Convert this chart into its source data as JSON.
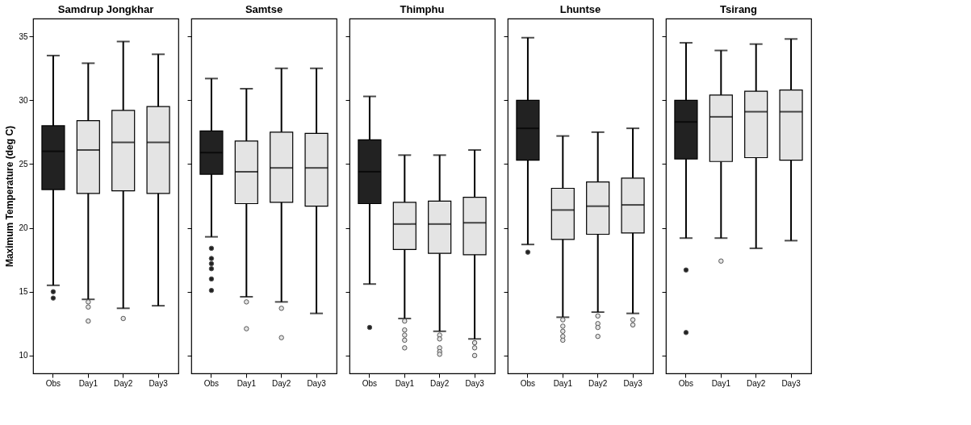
{
  "chart_data": [
    {
      "type": "box",
      "title": "Samdrup Jongkhar",
      "ylabel": "Maximum Temperature (deg C)",
      "categories": [
        "Obs",
        "Day1",
        "Day2",
        "Day3"
      ],
      "colors": [
        "#222222",
        "#e4e4e4",
        "#e4e4e4",
        "#e4e4e4"
      ],
      "ylim": [
        8.6,
        36.4
      ],
      "yticks": [
        10,
        15,
        20,
        25,
        30,
        35
      ],
      "grid": false,
      "boxes": [
        {
          "low": 15.5,
          "q1": 23.0,
          "median": 26.0,
          "q3": 28.0,
          "high": 33.5,
          "outliers": [
            15.0,
            14.5
          ]
        },
        {
          "low": 14.4,
          "q1": 22.7,
          "median": 26.1,
          "q3": 28.4,
          "high": 32.9,
          "outliers": [
            14.2,
            13.8,
            12.7
          ]
        },
        {
          "low": 13.7,
          "q1": 22.9,
          "median": 26.7,
          "q3": 29.2,
          "high": 34.6,
          "outliers": [
            12.9
          ]
        },
        {
          "low": 13.9,
          "q1": 22.7,
          "median": 26.7,
          "q3": 29.5,
          "high": 33.6
        }
      ]
    },
    {
      "type": "box",
      "title": "Samtse",
      "categories": [
        "Obs",
        "Day1",
        "Day2",
        "Day3"
      ],
      "colors": [
        "#222222",
        "#e4e4e4",
        "#e4e4e4",
        "#e4e4e4"
      ],
      "ylim": [
        8.6,
        36.4
      ],
      "yticks": [
        10,
        15,
        20,
        25,
        30,
        35
      ],
      "tick_labels": "x",
      "grid": false,
      "boxes": [
        {
          "low": 19.3,
          "q1": 24.2,
          "median": 25.9,
          "q3": 27.6,
          "high": 31.7,
          "outliers": [
            18.4,
            17.6,
            17.2,
            16.8,
            16.0,
            15.1
          ]
        },
        {
          "low": 14.6,
          "q1": 21.9,
          "median": 24.4,
          "q3": 26.8,
          "high": 30.9,
          "outliers": [
            14.2,
            12.1
          ]
        },
        {
          "low": 14.2,
          "q1": 22.0,
          "median": 24.7,
          "q3": 27.5,
          "high": 32.5,
          "outliers": [
            13.7,
            11.4
          ]
        },
        {
          "low": 13.3,
          "q1": 21.7,
          "median": 24.7,
          "q3": 27.4,
          "high": 32.5
        }
      ]
    },
    {
      "type": "box",
      "title": "Thimphu",
      "categories": [
        "Obs",
        "Day1",
        "Day2",
        "Day3"
      ],
      "colors": [
        "#222222",
        "#e4e4e4",
        "#e4e4e4",
        "#e4e4e4"
      ],
      "ylim": [
        8.6,
        36.4
      ],
      "yticks": [
        10,
        15,
        20,
        25,
        30,
        35
      ],
      "tick_labels": "x",
      "grid": false,
      "boxes": [
        {
          "low": 15.6,
          "q1": 21.9,
          "median": 24.4,
          "q3": 26.9,
          "high": 30.3,
          "outliers": [
            12.2
          ]
        },
        {
          "low": 12.9,
          "q1": 18.3,
          "median": 20.3,
          "q3": 22.0,
          "high": 25.7,
          "outliers": [
            12.7,
            12.0,
            11.6,
            11.2,
            10.6
          ]
        },
        {
          "low": 11.9,
          "q1": 18.0,
          "median": 20.3,
          "q3": 22.1,
          "high": 25.7,
          "outliers": [
            11.6,
            11.3,
            10.6,
            10.3,
            10.1
          ]
        },
        {
          "low": 11.3,
          "q1": 17.9,
          "median": 20.4,
          "q3": 22.4,
          "high": 26.1,
          "outliers": [
            11.0,
            10.6,
            10.0
          ]
        }
      ]
    },
    {
      "type": "box",
      "title": "Lhuntse",
      "categories": [
        "Obs",
        "Day1",
        "Day2",
        "Day3"
      ],
      "colors": [
        "#222222",
        "#e4e4e4",
        "#e4e4e4",
        "#e4e4e4"
      ],
      "ylim": [
        8.6,
        36.4
      ],
      "yticks": [
        10,
        15,
        20,
        25,
        30,
        35
      ],
      "tick_labels": "x",
      "grid": false,
      "boxes": [
        {
          "low": 18.7,
          "q1": 25.3,
          "median": 27.8,
          "q3": 30.0,
          "high": 34.9,
          "outliers": [
            18.1
          ]
        },
        {
          "low": 13.0,
          "q1": 19.1,
          "median": 21.4,
          "q3": 23.1,
          "high": 27.2,
          "outliers": [
            12.8,
            12.3,
            11.9,
            11.5,
            11.2
          ]
        },
        {
          "low": 13.4,
          "q1": 19.5,
          "median": 21.7,
          "q3": 23.6,
          "high": 27.5,
          "outliers": [
            13.1,
            12.5,
            12.2,
            11.5
          ]
        },
        {
          "low": 13.3,
          "q1": 19.6,
          "median": 21.8,
          "q3": 23.9,
          "high": 27.8,
          "outliers": [
            12.8,
            12.4
          ]
        }
      ]
    },
    {
      "type": "box",
      "title": "Tsirang",
      "categories": [
        "Obs",
        "Day1",
        "Day2",
        "Day3"
      ],
      "colors": [
        "#222222",
        "#e4e4e4",
        "#e4e4e4",
        "#e4e4e4"
      ],
      "ylim": [
        8.6,
        36.4
      ],
      "yticks": [
        10,
        15,
        20,
        25,
        30,
        35
      ],
      "tick_labels": "x",
      "grid": false,
      "boxes": [
        {
          "low": 19.2,
          "q1": 25.4,
          "median": 28.3,
          "q3": 30.0,
          "high": 34.5,
          "outliers": [
            16.7,
            11.8
          ]
        },
        {
          "low": 19.2,
          "q1": 25.2,
          "median": 28.7,
          "q3": 30.4,
          "high": 33.9,
          "outliers": [
            17.4
          ]
        },
        {
          "low": 18.4,
          "q1": 25.5,
          "median": 29.1,
          "q3": 30.7,
          "high": 34.4
        },
        {
          "low": 19.0,
          "q1": 25.3,
          "median": 29.1,
          "q3": 30.8,
          "high": 34.8
        }
      ]
    }
  ]
}
